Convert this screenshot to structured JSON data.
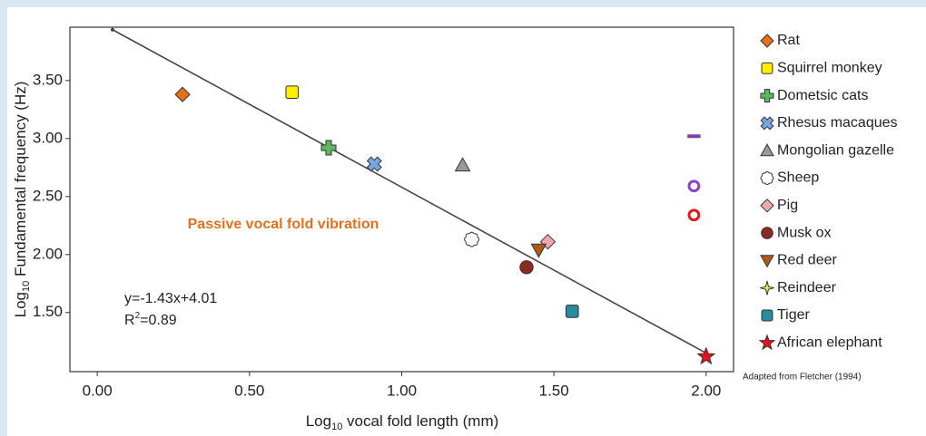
{
  "chart_data": {
    "type": "scatter",
    "xlabel": [
      "Log",
      "10",
      " vocal fold length (mm)"
    ],
    "ylabel": [
      "Log",
      "10",
      " Fundamental frequency (Hz)"
    ],
    "xlim": [
      -0.09,
      2.09
    ],
    "ylim": [
      0.99,
      3.96
    ],
    "xticks": [
      {
        "value": 0,
        "label": "0.00"
      },
      {
        "value": 0.5,
        "label": "0.50"
      },
      {
        "value": 1,
        "label": "1.00"
      },
      {
        "value": 1.5,
        "label": "1.50"
      },
      {
        "value": 2,
        "label": "2.00"
      }
    ],
    "yticks": [
      {
        "value": 1.5,
        "label": "1.50"
      },
      {
        "value": 2,
        "label": "2.00"
      },
      {
        "value": 2.5,
        "label": "2.50"
      },
      {
        "value": 3,
        "label": "3.00"
      },
      {
        "value": 3.5,
        "label": "3.50"
      }
    ],
    "series": [
      {
        "name": "Rat",
        "color": "#e8701a",
        "marker": "diamond",
        "x": [
          0.28
        ],
        "y": [
          3.38
        ]
      },
      {
        "name": "Squirrel monkey",
        "color": "#ffee00",
        "marker": "square",
        "x": [
          0.64
        ],
        "y": [
          3.4
        ]
      },
      {
        "name": "Dometsic cats",
        "color": "#5cb85c",
        "marker": "plus",
        "x": [
          0.76
        ],
        "y": [
          2.92
        ]
      },
      {
        "name": "Rhesus macaques",
        "color": "#7aa6e0",
        "marker": "cross",
        "x": [
          0.91
        ],
        "y": [
          2.78
        ]
      },
      {
        "name": "Mongolian gazelle",
        "color": "#9a9a9a",
        "marker": "triangle",
        "x": [
          1.2
        ],
        "y": [
          2.77
        ]
      },
      {
        "name": "Sheep",
        "color": "#ffffff",
        "marker": "cloud",
        "x": [
          1.23
        ],
        "y": [
          2.13
        ]
      },
      {
        "name": "Pig",
        "color": "#f0a8b0",
        "marker": "diamond",
        "x": [
          1.48
        ],
        "y": [
          2.11
        ]
      },
      {
        "name": "Musk ox",
        "color": "#8b2a1e",
        "marker": "circle",
        "x": [
          1.41
        ],
        "y": [
          1.89
        ]
      },
      {
        "name": "Red deer",
        "color": "#b05a18",
        "marker": "triangle-down",
        "x": [
          1.45
        ],
        "y": [
          2.04
        ]
      },
      {
        "name": "Reindeer",
        "color": "#ffee44",
        "marker": "star4",
        "x": [
          null
        ],
        "y": [
          null
        ]
      },
      {
        "name": "Tiger",
        "color": "#2a8aa0",
        "marker": "square",
        "x": [
          1.56
        ],
        "y": [
          1.51
        ]
      },
      {
        "name": "African elephant",
        "color": "#e8101a",
        "marker": "star5",
        "x": [
          2.0
        ],
        "y": [
          1.12
        ]
      }
    ],
    "unlabeled_points": [
      {
        "x": 1.96,
        "y": 3.02,
        "color": "#8040a8",
        "marker": "dash"
      },
      {
        "x": 1.96,
        "y": 2.59,
        "color": "#9040c0",
        "marker": "ring"
      },
      {
        "x": 1.96,
        "y": 2.34,
        "color": "#e01818",
        "marker": "ring"
      }
    ],
    "fit": {
      "slope": -1.43,
      "intercept": 4.01,
      "x_range": [
        0.05,
        2.0
      ]
    },
    "equation": "y=-1.43x+4.01",
    "r_squared": [
      "R",
      "2",
      "=0.89"
    ],
    "annotation": "Passive vocal fold vibration",
    "source": "Adapted from Fletcher (1994)"
  }
}
